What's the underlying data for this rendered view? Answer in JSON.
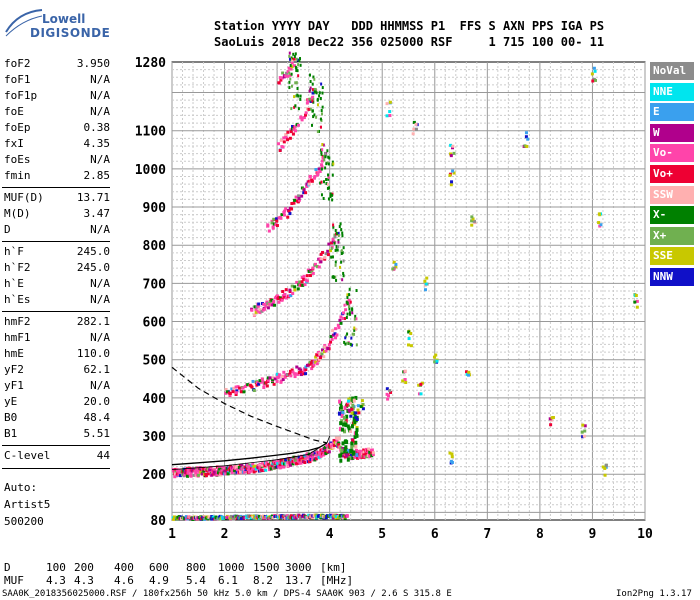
{
  "logo": {
    "line1": "Lowell",
    "line2": "DIGISONDE"
  },
  "header": {
    "row1": "Station YYYY DAY   DDD HHMMSS P1  FFS S AXN PPS IGA PS",
    "row2": "SaoLuis 2018 Dec22 356 025000 RSF     1 715 100 00- 11"
  },
  "params": [
    {
      "name": "foF2",
      "value": "3.950"
    },
    {
      "name": "foF1",
      "value": "N/A"
    },
    {
      "name": "foF1p",
      "value": "N/A"
    },
    {
      "name": "foE",
      "value": "N/A"
    },
    {
      "name": "foEp",
      "value": "0.38"
    },
    {
      "name": "fxI",
      "value": "4.35"
    },
    {
      "name": "foEs",
      "value": "N/A"
    },
    {
      "name": "fmin",
      "value": "2.85"
    },
    {
      "name": "MUF(D)",
      "value": "13.71"
    },
    {
      "name": "M(D)",
      "value": "3.47"
    },
    {
      "name": "D",
      "value": "N/A"
    },
    {
      "name": "h`F",
      "value": "245.0"
    },
    {
      "name": "h`F2",
      "value": "245.0"
    },
    {
      "name": "h`E",
      "value": "N/A"
    },
    {
      "name": "h`Es",
      "value": "N/A"
    },
    {
      "name": "hmF2",
      "value": "282.1"
    },
    {
      "name": "hmF1",
      "value": "N/A"
    },
    {
      "name": "hmE",
      "value": "110.0"
    },
    {
      "name": "yF2",
      "value": "62.1"
    },
    {
      "name": "yF1",
      "value": "N/A"
    },
    {
      "name": "yE",
      "value": "20.0"
    },
    {
      "name": "B0",
      "value": "48.4"
    },
    {
      "name": "B1",
      "value": "5.51"
    },
    {
      "name": "C-level",
      "value": "44"
    }
  ],
  "auto": {
    "line1": "Auto:",
    "line2": "Artist5",
    "line3": "500200"
  },
  "legend": [
    {
      "label": "NoVal",
      "color": "#8c8c8c"
    },
    {
      "label": "NNE",
      "color": "#00e5ee"
    },
    {
      "label": "E",
      "color": "#3aa0ee"
    },
    {
      "label": "W",
      "color": "#b0008c"
    },
    {
      "label": "Vo-",
      "color": "#ff44aa"
    },
    {
      "label": "Vo+",
      "color": "#ee0033"
    },
    {
      "label": "SSW",
      "color": "#ffb0b0"
    },
    {
      "label": "X-",
      "color": "#008000"
    },
    {
      "label": "X+",
      "color": "#70b050"
    },
    {
      "label": "SSE",
      "color": "#c8c800"
    },
    {
      "label": "NNW",
      "color": "#1010c8"
    }
  ],
  "chart_data": {
    "type": "scatter",
    "title": "",
    "xlabel": "",
    "ylabel": "",
    "xlim": [
      1,
      10
    ],
    "ylim": [
      80,
      1280
    ],
    "x_ticks": [
      "1",
      "2",
      "3",
      "4",
      "5",
      "6",
      "7",
      "8",
      "9",
      "10"
    ],
    "y_ticks": [
      "80",
      "200",
      "300",
      "400",
      "500",
      "600",
      "700",
      "800",
      "900",
      "1000",
      "1100",
      "1280"
    ],
    "grid": true,
    "traces": [
      {
        "name": "F-layer 1st hop",
        "points": [
          [
            1.0,
            207
          ],
          [
            1.5,
            210
          ],
          [
            2.0,
            213
          ],
          [
            2.5,
            220
          ],
          [
            3.0,
            230
          ],
          [
            3.3,
            238
          ],
          [
            3.6,
            248
          ],
          [
            3.8,
            258
          ],
          [
            3.9,
            266
          ],
          [
            4.0,
            278
          ],
          [
            4.1,
            290
          ],
          [
            4.2,
            260
          ],
          [
            4.4,
            255
          ],
          [
            4.8,
            262
          ]
        ]
      },
      {
        "name": "F-layer 2nd hop",
        "points": [
          [
            2.0,
            420
          ],
          [
            2.4,
            430
          ],
          [
            2.8,
            445
          ],
          [
            3.2,
            465
          ],
          [
            3.5,
            480
          ],
          [
            3.7,
            500
          ],
          [
            3.9,
            530
          ],
          [
            4.0,
            560
          ],
          [
            4.1,
            580
          ],
          [
            4.2,
            610
          ],
          [
            4.3,
            640
          ],
          [
            4.35,
            660
          ]
        ]
      },
      {
        "name": "F-layer 3rd hop",
        "points": [
          [
            2.5,
            630
          ],
          [
            2.8,
            650
          ],
          [
            3.1,
            672
          ],
          [
            3.4,
            700
          ],
          [
            3.6,
            730
          ],
          [
            3.8,
            765
          ],
          [
            4.0,
            800
          ],
          [
            4.1,
            830
          ]
        ]
      },
      {
        "name": "F-layer 4th hop",
        "points": [
          [
            2.8,
            850
          ],
          [
            3.0,
            870
          ],
          [
            3.2,
            895
          ],
          [
            3.4,
            930
          ],
          [
            3.6,
            970
          ],
          [
            3.8,
            1010
          ],
          [
            3.9,
            1040
          ]
        ]
      },
      {
        "name": "F-layer 5th hop",
        "points": [
          [
            3.0,
            1060
          ],
          [
            3.2,
            1090
          ],
          [
            3.4,
            1130
          ],
          [
            3.6,
            1180
          ],
          [
            3.7,
            1220
          ]
        ]
      },
      {
        "name": "F-layer 6th hop",
        "points": [
          [
            3.0,
            1240
          ],
          [
            3.2,
            1260
          ],
          [
            3.3,
            1280
          ]
        ]
      },
      {
        "name": "Sporadic low",
        "points": [
          [
            1.0,
            89
          ],
          [
            1.5,
            89
          ],
          [
            2.0,
            90
          ],
          [
            2.5,
            91
          ],
          [
            3.0,
            92
          ],
          [
            3.5,
            93
          ],
          [
            4.0,
            93
          ],
          [
            4.3,
            92
          ]
        ]
      },
      {
        "name": "Spread echoes",
        "points": [
          [
            4.35,
            380
          ],
          [
            4.4,
            370
          ],
          [
            4.5,
            365
          ],
          [
            4.6,
            380
          ],
          [
            5.1,
            420
          ],
          [
            5.4,
            460
          ],
          [
            5.7,
            430
          ],
          [
            6.3,
            1050
          ],
          [
            6.3,
            980
          ],
          [
            6.7,
            870
          ],
          [
            5.1,
            1160
          ],
          [
            5.6,
            1110
          ],
          [
            5.2,
            760
          ],
          [
            5.8,
            700
          ],
          [
            5.5,
            560
          ],
          [
            6.0,
            500
          ],
          [
            6.6,
            480
          ],
          [
            6.3,
            250
          ],
          [
            7.7,
            1080
          ],
          [
            9.1,
            870
          ],
          [
            9.2,
            220
          ],
          [
            9.8,
            660
          ],
          [
            8.2,
            340
          ],
          [
            8.8,
            320
          ],
          [
            9.0,
            1250
          ]
        ]
      }
    ],
    "profile_curve": [
      [
        1.0,
        225
      ],
      [
        1.5,
        230
      ],
      [
        2.0,
        235
      ],
      [
        2.5,
        242
      ],
      [
        3.0,
        250
      ],
      [
        3.3,
        255
      ],
      [
        3.6,
        262
      ],
      [
        3.8,
        270
      ],
      [
        3.95,
        282
      ]
    ],
    "dashed_curve": [
      [
        1.0,
        480
      ],
      [
        1.5,
        425
      ],
      [
        2.0,
        385
      ],
      [
        2.5,
        352
      ],
      [
        3.0,
        325
      ],
      [
        3.4,
        305
      ],
      [
        3.7,
        290
      ],
      [
        3.95,
        282
      ]
    ]
  },
  "dmuf": {
    "d_label": "D",
    "d_values": [
      "100",
      "200",
      "400",
      "600",
      "800",
      "1000",
      "1500",
      "3000"
    ],
    "d_unit": "[km]",
    "muf_label": "MUF",
    "muf_values": [
      "4.3",
      "4.3",
      "4.6",
      "4.9",
      "5.4",
      "6.1",
      "8.2",
      "13.7"
    ],
    "muf_unit": "[MHz]"
  },
  "footer": {
    "left": "SAA0K_2018356025000.RSF / 180fx256h 50 kHz 5.0 km / DPS-4 SAA0K 903 / 2.6 S 315.8 E",
    "right": "Ion2Png 1.3.17"
  }
}
